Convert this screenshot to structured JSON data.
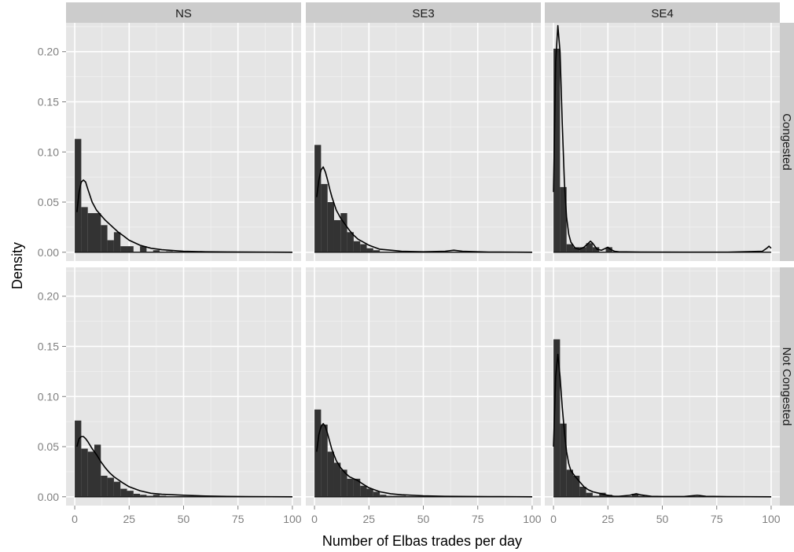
{
  "chart_data": {
    "type": "histogram-density-facet",
    "xlabel": "Number of Elbas trades per day",
    "ylabel": "Density",
    "xlim": [
      0,
      100
    ],
    "ylim": [
      0,
      0.22
    ],
    "x_ticks": [
      0,
      25,
      50,
      75,
      100
    ],
    "y_ticks": [
      0.0,
      0.05,
      0.1,
      0.15,
      0.2
    ],
    "y_tick_labels": [
      "0.00",
      "0.05",
      "0.10",
      "0.15",
      "0.20"
    ],
    "bin_width": 3,
    "grid": true,
    "columns": [
      "NS",
      "SE3",
      "SE4"
    ],
    "rows": [
      "Congested",
      "Not Congested"
    ],
    "panels": [
      {
        "column": "NS",
        "row": "Congested",
        "histogram": [
          0.113,
          0.045,
          0.039,
          0.039,
          0.027,
          0.012,
          0.02,
          0.006,
          0.006,
          0.0,
          0.006,
          0.0,
          0.002,
          0.0,
          0.001
        ],
        "density_x": [
          1,
          2,
          3,
          4,
          5,
          6,
          8,
          10,
          12,
          14,
          16,
          18,
          20,
          22,
          25,
          30,
          35,
          40,
          50,
          60,
          70,
          80,
          90,
          100
        ],
        "density_y": [
          0.04,
          0.06,
          0.07,
          0.072,
          0.07,
          0.063,
          0.05,
          0.042,
          0.037,
          0.032,
          0.028,
          0.024,
          0.02,
          0.017,
          0.012,
          0.007,
          0.004,
          0.0025,
          0.001,
          0.0005,
          0.0003,
          0.0002,
          0.0001,
          0.0
        ]
      },
      {
        "column": "SE3",
        "row": "Congested",
        "histogram": [
          0.107,
          0.068,
          0.05,
          0.032,
          0.039,
          0.02,
          0.011,
          0.008,
          0.004,
          0.002,
          0.0,
          0.0,
          0.0,
          0.0
        ],
        "density_x": [
          1,
          2,
          3,
          4,
          5,
          6,
          7,
          8,
          10,
          12,
          14,
          16,
          18,
          20,
          25,
          30,
          35,
          40,
          50,
          60,
          64,
          68,
          80,
          100
        ],
        "density_y": [
          0.055,
          0.072,
          0.082,
          0.085,
          0.08,
          0.072,
          0.063,
          0.055,
          0.042,
          0.034,
          0.028,
          0.022,
          0.017,
          0.013,
          0.007,
          0.003,
          0.002,
          0.001,
          0.0005,
          0.001,
          0.002,
          0.001,
          0.0002,
          0.0
        ]
      },
      {
        "column": "SE4",
        "row": "Congested",
        "histogram": [
          0.203,
          0.065,
          0.008,
          0.005,
          0.005,
          0.009,
          0.005,
          0.0,
          0.005,
          0.0
        ],
        "density_x": [
          0,
          1,
          2,
          3,
          4,
          5,
          6,
          7,
          8,
          10,
          12,
          14,
          16,
          17,
          18,
          20,
          22,
          24,
          25,
          26,
          28,
          30,
          40,
          60,
          80,
          96,
          98,
          99,
          100
        ],
        "density_y": [
          0.06,
          0.19,
          0.226,
          0.2,
          0.13,
          0.07,
          0.035,
          0.018,
          0.01,
          0.004,
          0.003,
          0.005,
          0.009,
          0.011,
          0.009,
          0.003,
          0.002,
          0.004,
          0.005,
          0.003,
          0.001,
          0.0005,
          0.0002,
          0.0001,
          0.0001,
          0.001,
          0.004,
          0.006,
          0.004
        ]
      },
      {
        "column": "NS",
        "row": "Not Congested",
        "histogram": [
          0.076,
          0.048,
          0.045,
          0.052,
          0.021,
          0.019,
          0.015,
          0.008,
          0.006,
          0.003,
          0.002,
          0.001,
          0.002,
          0.001
        ],
        "density_x": [
          1,
          2,
          3,
          4,
          5,
          6,
          8,
          10,
          12,
          14,
          16,
          18,
          20,
          22,
          25,
          30,
          35,
          40,
          45,
          50,
          60,
          70,
          80,
          100
        ],
        "density_y": [
          0.05,
          0.058,
          0.06,
          0.06,
          0.058,
          0.055,
          0.048,
          0.042,
          0.035,
          0.029,
          0.024,
          0.02,
          0.017,
          0.014,
          0.01,
          0.006,
          0.0035,
          0.0025,
          0.002,
          0.0015,
          0.0008,
          0.0004,
          0.0002,
          0.0
        ]
      },
      {
        "column": "SE3",
        "row": "Not Congested",
        "histogram": [
          0.087,
          0.072,
          0.045,
          0.034,
          0.027,
          0.018,
          0.018,
          0.011,
          0.008,
          0.005,
          0.002,
          0.001,
          0.001,
          0.001
        ],
        "density_x": [
          1,
          2,
          3,
          4,
          5,
          6,
          7,
          8,
          10,
          12,
          14,
          16,
          18,
          20,
          22,
          25,
          30,
          35,
          40,
          50,
          60,
          80,
          100
        ],
        "density_y": [
          0.045,
          0.062,
          0.07,
          0.073,
          0.07,
          0.063,
          0.055,
          0.047,
          0.036,
          0.029,
          0.024,
          0.02,
          0.018,
          0.016,
          0.013,
          0.009,
          0.005,
          0.003,
          0.002,
          0.001,
          0.0005,
          0.0002,
          0.0
        ]
      },
      {
        "column": "SE4",
        "row": "Not Congested",
        "histogram": [
          0.157,
          0.073,
          0.027,
          0.021,
          0.01,
          0.004,
          0.001,
          0.004,
          0.002,
          0.0,
          0.001,
          0.0,
          0.003,
          0.001
        ],
        "density_x": [
          0,
          1,
          2,
          3,
          4,
          5,
          6,
          7,
          8,
          10,
          12,
          14,
          16,
          18,
          20,
          22,
          24,
          26,
          28,
          30,
          35,
          38,
          40,
          45,
          50,
          60,
          66,
          70,
          80,
          100
        ],
        "density_y": [
          0.05,
          0.12,
          0.142,
          0.12,
          0.09,
          0.065,
          0.045,
          0.033,
          0.026,
          0.02,
          0.015,
          0.01,
          0.007,
          0.005,
          0.004,
          0.003,
          0.002,
          0.001,
          0.0005,
          0.0005,
          0.0015,
          0.003,
          0.002,
          0.0005,
          0.0003,
          0.0003,
          0.0015,
          0.0005,
          0.0002,
          0.0
        ]
      }
    ]
  }
}
